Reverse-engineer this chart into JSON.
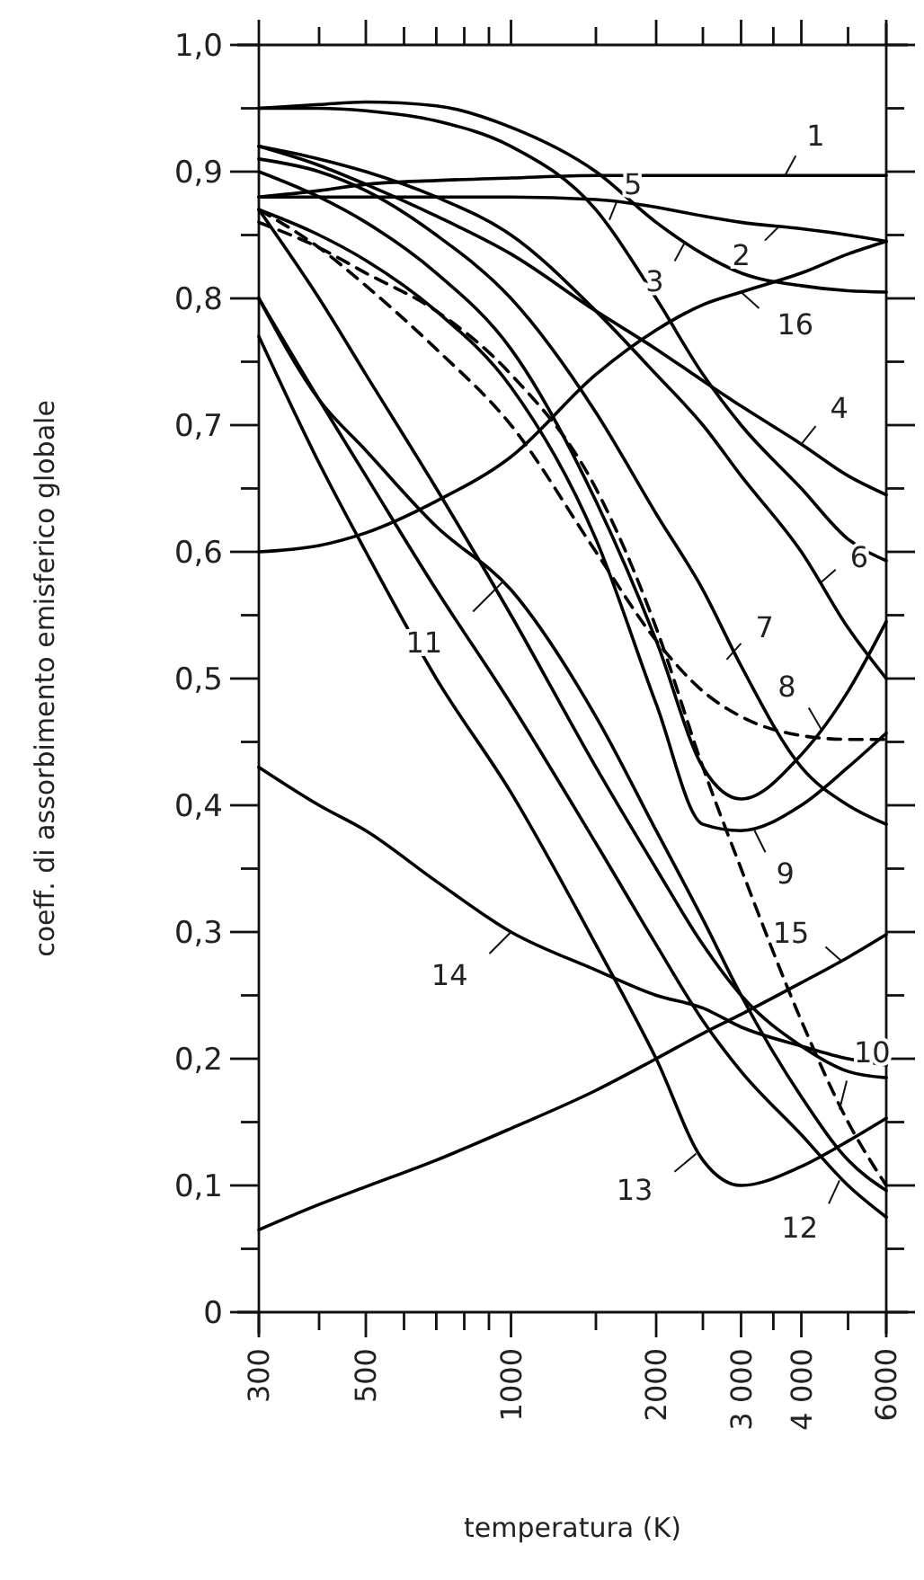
{
  "chart_data": {
    "type": "line",
    "xlabel": "temperatura (K)",
    "ylabel": "coeff. di assorbimento emisferico globale",
    "log": "x",
    "grid": false,
    "marker": "none",
    "line_style": "solid",
    "x": [
      300,
      400,
      500,
      700,
      1000,
      1500,
      2000,
      2500,
      3000,
      4000,
      5000,
      6000
    ],
    "xlim": [
      300,
      6000
    ],
    "xticks": [
      300,
      {
        "value": 400,
        "label": null
      },
      500,
      {
        "value": 600,
        "label": null
      },
      {
        "value": 700,
        "label": null
      },
      {
        "value": 800,
        "label": null
      },
      {
        "value": 900,
        "label": null
      },
      {
        "value": 1000,
        "label": "1000"
      },
      {
        "value": 1500,
        "label": null
      },
      {
        "value": 2000,
        "label": "2000"
      },
      {
        "value": 2500,
        "label": null
      },
      {
        "value": 3000,
        "label": "3 000"
      },
      {
        "value": 3500,
        "label": null
      },
      {
        "value": 4000,
        "label": "4 000"
      },
      {
        "value": 5000,
        "label": null
      },
      {
        "value": 6000,
        "label": "6000"
      }
    ],
    "ylim": [
      0,
      1
    ],
    "yticks": [
      0,
      {
        "value": 0.05,
        "label": null
      },
      {
        "value": 0.1,
        "label": "0,1"
      },
      {
        "value": 0.15,
        "label": null
      },
      {
        "value": 0.2,
        "label": "0,2"
      },
      {
        "value": 0.25,
        "label": null
      },
      {
        "value": 0.3,
        "label": "0,3"
      },
      {
        "value": 0.35,
        "label": null
      },
      {
        "value": 0.4,
        "label": "0,4"
      },
      {
        "value": 0.45,
        "label": null
      },
      {
        "value": 0.5,
        "label": "0,5"
      },
      {
        "value": 0.55,
        "label": null
      },
      {
        "value": 0.6,
        "label": "0,6"
      },
      {
        "value": 0.65,
        "label": null
      },
      {
        "value": 0.7,
        "label": "0,7"
      },
      {
        "value": 0.75,
        "label": null
      },
      {
        "value": 0.8,
        "label": "0,8"
      },
      {
        "value": 0.85,
        "label": null
      },
      {
        "value": 0.9,
        "label": "0,9"
      },
      {
        "value": 0.95,
        "label": null
      },
      {
        "value": 1,
        "label": "1,0"
      }
    ],
    "series": [
      {
        "color": "#000000",
        "values": [
          0.88,
          0.885,
          0.89,
          0.893,
          0.895,
          0.897,
          0.897,
          0.897,
          0.897,
          0.897,
          0.897,
          0.897
        ]
      },
      {
        "color": "#000000",
        "values": [
          0.88,
          0.88,
          0.88,
          0.88,
          0.88,
          0.878,
          0.872,
          0.865,
          0.86,
          0.855,
          0.85,
          0.845
        ]
      },
      {
        "color": "#000000",
        "values": [
          0.95,
          0.953,
          0.955,
          0.952,
          0.935,
          0.9,
          0.86,
          0.835,
          0.82,
          0.81,
          0.806,
          0.805
        ]
      },
      {
        "color": "#000000",
        "values": [
          0.92,
          0.905,
          0.89,
          0.865,
          0.835,
          0.79,
          0.76,
          0.735,
          0.715,
          0.685,
          0.66,
          0.645
        ]
      },
      {
        "color": "#000000",
        "values": [
          0.95,
          0.95,
          0.948,
          0.94,
          0.92,
          0.87,
          0.8,
          0.74,
          0.7,
          0.65,
          0.61,
          0.593
        ]
      },
      {
        "color": "#000000",
        "values": [
          0.92,
          0.91,
          0.9,
          0.88,
          0.85,
          0.79,
          0.74,
          0.7,
          0.66,
          0.6,
          0.54,
          0.5
        ]
      },
      {
        "color": "#000000",
        "values": [
          0.91,
          0.9,
          0.885,
          0.85,
          0.8,
          0.71,
          0.63,
          0.57,
          0.51,
          0.43,
          0.4,
          0.385
        ]
      },
      {
        "color": "#000000",
        "values": [
          0.9,
          0.88,
          0.86,
          0.82,
          0.76,
          0.64,
          0.53,
          0.43,
          0.405,
          0.44,
          0.49,
          0.545
        ]
      },
      {
        "color": "#000000",
        "values": [
          0.87,
          0.85,
          0.83,
          0.79,
          0.73,
          0.61,
          0.48,
          0.385,
          0.38,
          0.4,
          0.43,
          0.457
        ]
      },
      {
        "color": "#000000",
        "line_style": "dashed",
        "values": [
          0.87,
          0.84,
          0.81,
          0.76,
          0.7,
          0.6,
          0.53,
          0.49,
          0.47,
          0.455,
          0.452,
          0.452
        ]
      },
      {
        "color": "#000000",
        "line_style": "dashed",
        "values": [
          0.86,
          0.84,
          0.82,
          0.79,
          0.74,
          0.65,
          0.54,
          0.43,
          0.35,
          0.23,
          0.15,
          0.1
        ]
      },
      {
        "color": "#000000",
        "values": [
          0.8,
          0.72,
          0.68,
          0.62,
          0.57,
          0.47,
          0.38,
          0.31,
          0.25,
          0.17,
          0.12,
          0.096
        ]
      },
      {
        "color": "#000000",
        "values": [
          0.8,
          0.72,
          0.66,
          0.57,
          0.48,
          0.37,
          0.29,
          0.23,
          0.19,
          0.14,
          0.1,
          0.075
        ]
      },
      {
        "color": "#000000",
        "values": [
          0.77,
          0.67,
          0.6,
          0.5,
          0.41,
          0.29,
          0.2,
          0.12,
          0.1,
          0.115,
          0.135,
          0.153
        ]
      },
      {
        "color": "#000000",
        "values": [
          0.87,
          0.8,
          0.74,
          0.65,
          0.55,
          0.43,
          0.35,
          0.29,
          0.25,
          0.21,
          0.19,
          0.185
        ]
      },
      {
        "color": "#000000",
        "values": [
          0.43,
          0.4,
          0.38,
          0.34,
          0.3,
          0.27,
          0.25,
          0.24,
          0.225,
          0.21,
          0.2,
          0.195
        ]
      },
      {
        "color": "#000000",
        "values": [
          0.065,
          0.085,
          0.099,
          0.12,
          0.145,
          0.175,
          0.2,
          0.22,
          0.235,
          0.26,
          0.28,
          0.298
        ]
      },
      {
        "color": "#000000",
        "values": [
          0.6,
          0.605,
          0.615,
          0.64,
          0.675,
          0.74,
          0.775,
          0.795,
          0.805,
          0.82,
          0.835,
          0.845
        ]
      }
    ],
    "annotations": [
      {
        "text": "1",
        "x": 3700,
        "y": 0.897
      },
      {
        "text": "2",
        "x": 3600,
        "y": 0.857
      },
      {
        "text": "3",
        "x": 2300,
        "y": 0.845
      },
      {
        "text": "4",
        "x": 4000,
        "y": 0.685
      },
      {
        "text": "5",
        "x": 1600,
        "y": 0.862
      },
      {
        "text": "6",
        "x": 4400,
        "y": 0.576
      },
      {
        "text": "7",
        "x": 2800,
        "y": 0.515
      },
      {
        "text": "8",
        "x": 4400,
        "y": 0.46
      },
      {
        "text": "9",
        "x": 3200,
        "y": 0.38
      },
      {
        "text": "10",
        "x": 4800,
        "y": 0.16
      },
      {
        "text": "11",
        "x": 965,
        "y": 0.577
      },
      {
        "text": "12",
        "x": 4800,
        "y": 0.104
      },
      {
        "text": "13",
        "x": 2420,
        "y": 0.125
      },
      {
        "text": "14",
        "x": 1000,
        "y": 0.3
      },
      {
        "text": "15",
        "x": 4850,
        "y": 0.277
      },
      {
        "text": "16",
        "x": 3000,
        "y": 0.805
      }
    ]
  }
}
